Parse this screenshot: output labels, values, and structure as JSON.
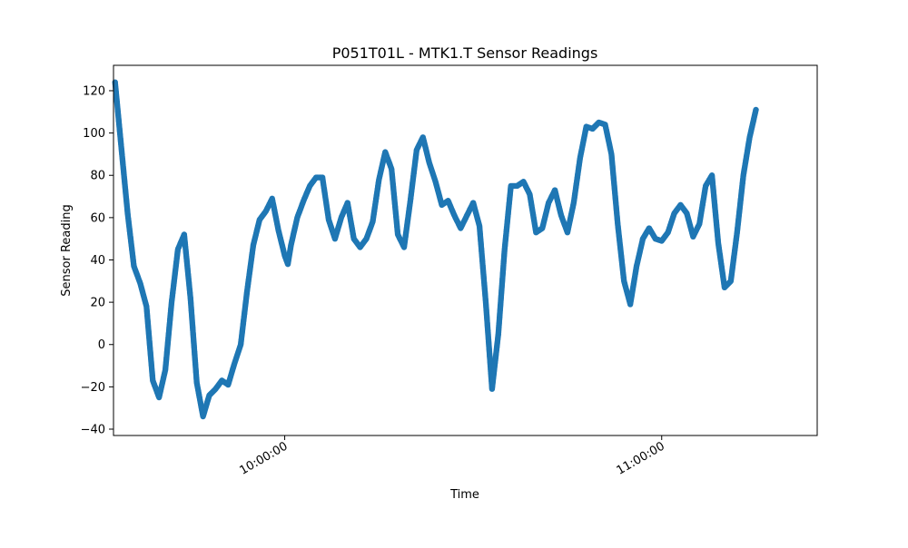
{
  "chart_data": {
    "type": "scatter",
    "title": "P051T01L - MTK1.T Sensor Readings",
    "xlabel": "Time",
    "ylabel": "Sensor Reading",
    "x_tick_labels": [
      "10:00:00",
      "11:00:00"
    ],
    "x_ticks": [
      "10:00:00",
      "11:00:00"
    ],
    "xlim": [
      "09:32:45",
      "11:24:45"
    ],
    "y_ticks": [
      -40,
      -20,
      0,
      20,
      40,
      60,
      80,
      100,
      120
    ],
    "ylim": [
      -43,
      132
    ],
    "grid": false,
    "marker_color": "#1f77b4",
    "series": [
      {
        "points": [
          [
            "09:33:00",
            124
          ],
          [
            "09:34:00",
            93
          ],
          [
            "09:35:00",
            62
          ],
          [
            "09:36:00",
            37
          ],
          [
            "09:37:00",
            29
          ],
          [
            "09:38:00",
            18
          ],
          [
            "09:39:00",
            -17
          ],
          [
            "09:40:00",
            -25
          ],
          [
            "09:41:00",
            -12
          ],
          [
            "09:42:00",
            20
          ],
          [
            "09:43:00",
            45
          ],
          [
            "09:44:00",
            52
          ],
          [
            "09:45:00",
            22
          ],
          [
            "09:46:00",
            -18
          ],
          [
            "09:47:00",
            -34
          ],
          [
            "09:48:00",
            -24
          ],
          [
            "09:49:00",
            -21
          ],
          [
            "09:50:00",
            -17
          ],
          [
            "09:51:00",
            -19
          ],
          [
            "09:52:00",
            -9
          ],
          [
            "09:53:00",
            0
          ],
          [
            "09:54:00",
            25
          ],
          [
            "09:55:00",
            47
          ],
          [
            "09:56:00",
            59
          ],
          [
            "09:57:00",
            63
          ],
          [
            "09:58:00",
            69
          ],
          [
            "09:59:00",
            54
          ],
          [
            "10:00:00",
            42
          ],
          [
            "10:00:30",
            38
          ],
          [
            "10:01:00",
            47
          ],
          [
            "10:02:00",
            60
          ],
          [
            "10:03:00",
            68
          ],
          [
            "10:04:00",
            75
          ],
          [
            "10:05:00",
            79
          ],
          [
            "10:06:00",
            79
          ],
          [
            "10:07:00",
            59
          ],
          [
            "10:08:00",
            50
          ],
          [
            "10:09:00",
            60
          ],
          [
            "10:10:00",
            67
          ],
          [
            "10:11:00",
            50
          ],
          [
            "10:12:00",
            46
          ],
          [
            "10:13:00",
            50
          ],
          [
            "10:14:00",
            58
          ],
          [
            "10:15:00",
            78
          ],
          [
            "10:16:00",
            91
          ],
          [
            "10:17:00",
            83
          ],
          [
            "10:18:00",
            52
          ],
          [
            "10:19:00",
            46
          ],
          [
            "10:20:00",
            68
          ],
          [
            "10:21:00",
            92
          ],
          [
            "10:22:00",
            98
          ],
          [
            "10:23:00",
            86
          ],
          [
            "10:24:00",
            77
          ],
          [
            "10:25:00",
            66
          ],
          [
            "10:26:00",
            68
          ],
          [
            "10:27:00",
            61
          ],
          [
            "10:28:00",
            55
          ],
          [
            "10:29:00",
            61
          ],
          [
            "10:30:00",
            67
          ],
          [
            "10:31:00",
            56
          ],
          [
            "10:32:00",
            20
          ],
          [
            "10:33:00",
            -21
          ],
          [
            "10:34:00",
            5
          ],
          [
            "10:35:00",
            45
          ],
          [
            "10:36:00",
            75
          ],
          [
            "10:37:00",
            75
          ],
          [
            "10:38:00",
            77
          ],
          [
            "10:39:00",
            71
          ],
          [
            "10:40:00",
            53
          ],
          [
            "10:41:00",
            55
          ],
          [
            "10:42:00",
            67
          ],
          [
            "10:43:00",
            73
          ],
          [
            "10:44:00",
            61
          ],
          [
            "10:45:00",
            53
          ],
          [
            "10:46:00",
            67
          ],
          [
            "10:47:00",
            88
          ],
          [
            "10:48:00",
            103
          ],
          [
            "10:49:00",
            102
          ],
          [
            "10:50:00",
            105
          ],
          [
            "10:51:00",
            104
          ],
          [
            "10:52:00",
            90
          ],
          [
            "10:53:00",
            57
          ],
          [
            "10:54:00",
            30
          ],
          [
            "10:55:00",
            19
          ],
          [
            "10:56:00",
            37
          ],
          [
            "10:57:00",
            50
          ],
          [
            "10:58:00",
            55
          ],
          [
            "10:59:00",
            50
          ],
          [
            "11:00:00",
            49
          ],
          [
            "11:01:00",
            53
          ],
          [
            "11:02:00",
            62
          ],
          [
            "11:03:00",
            66
          ],
          [
            "11:04:00",
            62
          ],
          [
            "11:05:00",
            51
          ],
          [
            "11:06:00",
            57
          ],
          [
            "11:07:00",
            75
          ],
          [
            "11:08:00",
            80
          ],
          [
            "11:09:00",
            48
          ],
          [
            "11:10:00",
            27
          ],
          [
            "11:11:00",
            30
          ],
          [
            "11:12:00",
            53
          ],
          [
            "11:13:00",
            80
          ],
          [
            "11:14:00",
            98
          ],
          [
            "11:15:00",
            111
          ]
        ]
      }
    ]
  }
}
